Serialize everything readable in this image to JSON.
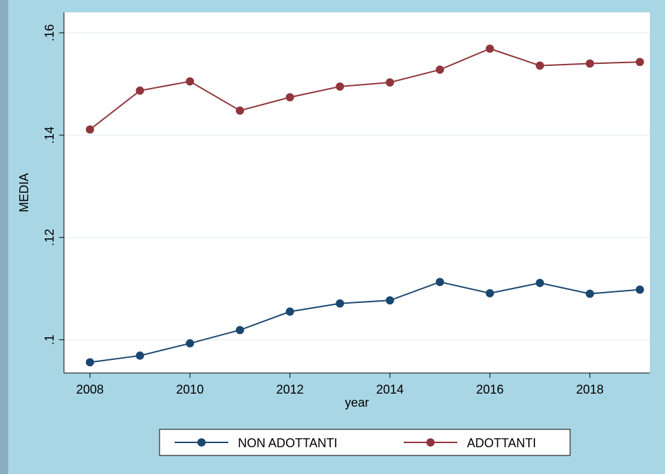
{
  "chart_data": {
    "type": "line",
    "x": [
      2008,
      2009,
      2010,
      2011,
      2012,
      2013,
      2014,
      2015,
      2016,
      2017,
      2018,
      2019
    ],
    "series": [
      {
        "name": "NON ADOTTANTI",
        "color": "#1a476f",
        "values": [
          0.0956,
          0.0969,
          0.0993,
          0.1019,
          0.1055,
          0.1071,
          0.1077,
          0.1113,
          0.1091,
          0.1111,
          0.109,
          0.1098
        ]
      },
      {
        "name": "ADOTTANTI",
        "color": "#90353b",
        "values": [
          0.1411,
          0.1487,
          0.1505,
          0.1448,
          0.1474,
          0.1495,
          0.1503,
          0.1528,
          0.1569,
          0.1536,
          0.154,
          0.1543
        ]
      }
    ],
    "xlabel": "year",
    "ylabel": "MEDIA",
    "xlim": [
      2007.48,
      2019.2
    ],
    "xticks": [
      2008,
      2010,
      2012,
      2014,
      2016,
      2018
    ],
    "ylim": [
      0.0935,
      0.164
    ],
    "yticks": [
      {
        "value": 0.1,
        "label": ".1"
      },
      {
        "value": 0.12,
        "label": ".12"
      },
      {
        "value": 0.14,
        "label": ".14"
      },
      {
        "value": 0.16,
        "label": ".16"
      }
    ],
    "grid": true,
    "legend": "bottom"
  }
}
